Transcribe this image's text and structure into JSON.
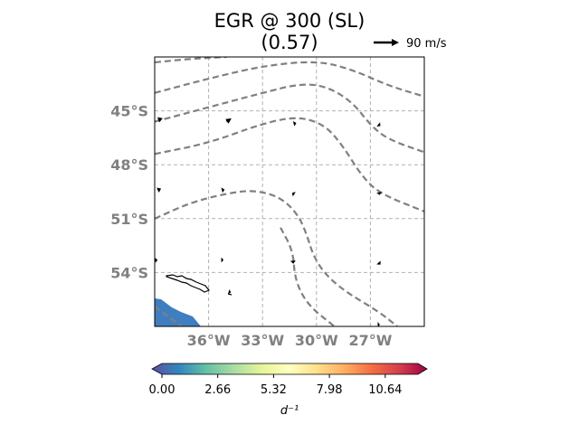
{
  "title_line1": "EGR @ 300 (SL)",
  "title_line2": "(0.57)",
  "reference_vector": {
    "label": "90 m/s",
    "magnitude_ms": 90
  },
  "map": {
    "extent": {
      "lon_min": -39,
      "lon_max": -24,
      "lat_min": -57,
      "lat_max": -42
    },
    "lat_ticks": [
      {
        "value": -45,
        "label": "45°S"
      },
      {
        "value": -48,
        "label": "48°S"
      },
      {
        "value": -51,
        "label": "51°S"
      },
      {
        "value": -54,
        "label": "54°S"
      }
    ],
    "lon_ticks": [
      {
        "value": -36,
        "label": "36°W"
      },
      {
        "value": -33,
        "label": "33°W"
      },
      {
        "value": -30,
        "label": "30°W"
      },
      {
        "value": -27,
        "label": "27°W"
      }
    ],
    "gridlines": true,
    "coastline": "South Georgia island outline",
    "filled_region": {
      "description": "low EGR values in lower-left corner",
      "color": "#3f7fbf"
    }
  },
  "contours": {
    "style": "dashed",
    "color": "#808080",
    "lines": [
      [
        [
          -39,
          -42.3
        ],
        [
          -37,
          -42.1
        ],
        [
          -35,
          -42
        ]
      ],
      [
        [
          -39,
          -44
        ],
        [
          -36,
          -43.2
        ],
        [
          -33,
          -42.5
        ],
        [
          -30,
          -42.2
        ],
        [
          -28,
          -42.7
        ],
        [
          -26,
          -43.6
        ],
        [
          -24,
          -44.2
        ]
      ],
      [
        [
          -39,
          -45.6
        ],
        [
          -36,
          -44.8
        ],
        [
          -33,
          -44
        ],
        [
          -31,
          -43.5
        ],
        [
          -29.5,
          -43.6
        ],
        [
          -28,
          -44.5
        ],
        [
          -27,
          -45.8
        ],
        [
          -26,
          -46.6
        ],
        [
          -24,
          -47.3
        ]
      ],
      [
        [
          -39,
          -47.4
        ],
        [
          -36,
          -46.8
        ],
        [
          -33,
          -45.7
        ],
        [
          -31,
          -45.3
        ],
        [
          -29.5,
          -45.8
        ],
        [
          -28.5,
          -47
        ],
        [
          -27.5,
          -48.6
        ],
        [
          -26.5,
          -49.6
        ],
        [
          -24,
          -50.6
        ]
      ],
      [
        [
          -39,
          -51
        ],
        [
          -37,
          -50.1
        ],
        [
          -35,
          -49.6
        ],
        [
          -33.5,
          -49.4
        ],
        [
          -32,
          -49.8
        ],
        [
          -31,
          -50.8
        ],
        [
          -30.5,
          -52
        ],
        [
          -30.2,
          -53
        ],
        [
          -29.6,
          -54
        ],
        [
          -28.5,
          -55
        ],
        [
          -26.5,
          -56.2
        ],
        [
          -25.5,
          -57
        ]
      ],
      [
        [
          -39,
          -55.9
        ],
        [
          -37.5,
          -57
        ]
      ],
      [
        [
          -32,
          -51.5
        ],
        [
          -31.3,
          -52.8
        ],
        [
          -31.2,
          -54.4
        ],
        [
          -30.5,
          -55.8
        ],
        [
          -29,
          -57
        ]
      ]
    ]
  },
  "wind_vectors": [
    {
      "lon": -38.8,
      "lat": -45.5,
      "u": 22,
      "v": 8
    },
    {
      "lon": -35.0,
      "lat": -45.6,
      "u": 24,
      "v": 16
    },
    {
      "lon": -31.2,
      "lat": -45.7,
      "u": 7,
      "v": 2
    },
    {
      "lon": -26.5,
      "lat": -45.8,
      "u": 5,
      "v": -4
    },
    {
      "lon": -38.8,
      "lat": -49.4,
      "u": 14,
      "v": 6
    },
    {
      "lon": -35.2,
      "lat": -49.4,
      "u": 8,
      "v": 2
    },
    {
      "lon": -31.3,
      "lat": -49.6,
      "u": -5,
      "v": 3
    },
    {
      "lon": -26.5,
      "lat": -49.6,
      "u": 1,
      "v": -8
    },
    {
      "lon": -38.9,
      "lat": -53.3,
      "u": 5,
      "v": 1
    },
    {
      "lon": -35.2,
      "lat": -53.3,
      "u": 2,
      "v": 0
    },
    {
      "lon": -31.3,
      "lat": -53.4,
      "u": 1,
      "v": -10
    },
    {
      "lon": -26.5,
      "lat": -53.5,
      "u": 5,
      "v": -6
    },
    {
      "lon": -34.8,
      "lat": -55.1,
      "u": 3,
      "v": -1
    },
    {
      "lon": -26.5,
      "lat": -56.9,
      "u": 2,
      "v": 0
    }
  ],
  "colorbar": {
    "cmap": "Spectral_r",
    "colors": [
      "#5e4fa2",
      "#3288bd",
      "#66c2a5",
      "#abdda4",
      "#e6f598",
      "#ffffbf",
      "#fee08b",
      "#fdae61",
      "#f46d43",
      "#d53e4f",
      "#9e0142"
    ],
    "ticks": [
      {
        "value": 0.0,
        "label": "0.00"
      },
      {
        "value": 2.66,
        "label": "2.66"
      },
      {
        "value": 5.32,
        "label": "5.32"
      },
      {
        "value": 7.98,
        "label": "7.98"
      },
      {
        "value": 10.64,
        "label": "10.64"
      }
    ],
    "range": [
      0,
      12.2
    ],
    "extend": "both",
    "unit_label": "d⁻¹"
  }
}
